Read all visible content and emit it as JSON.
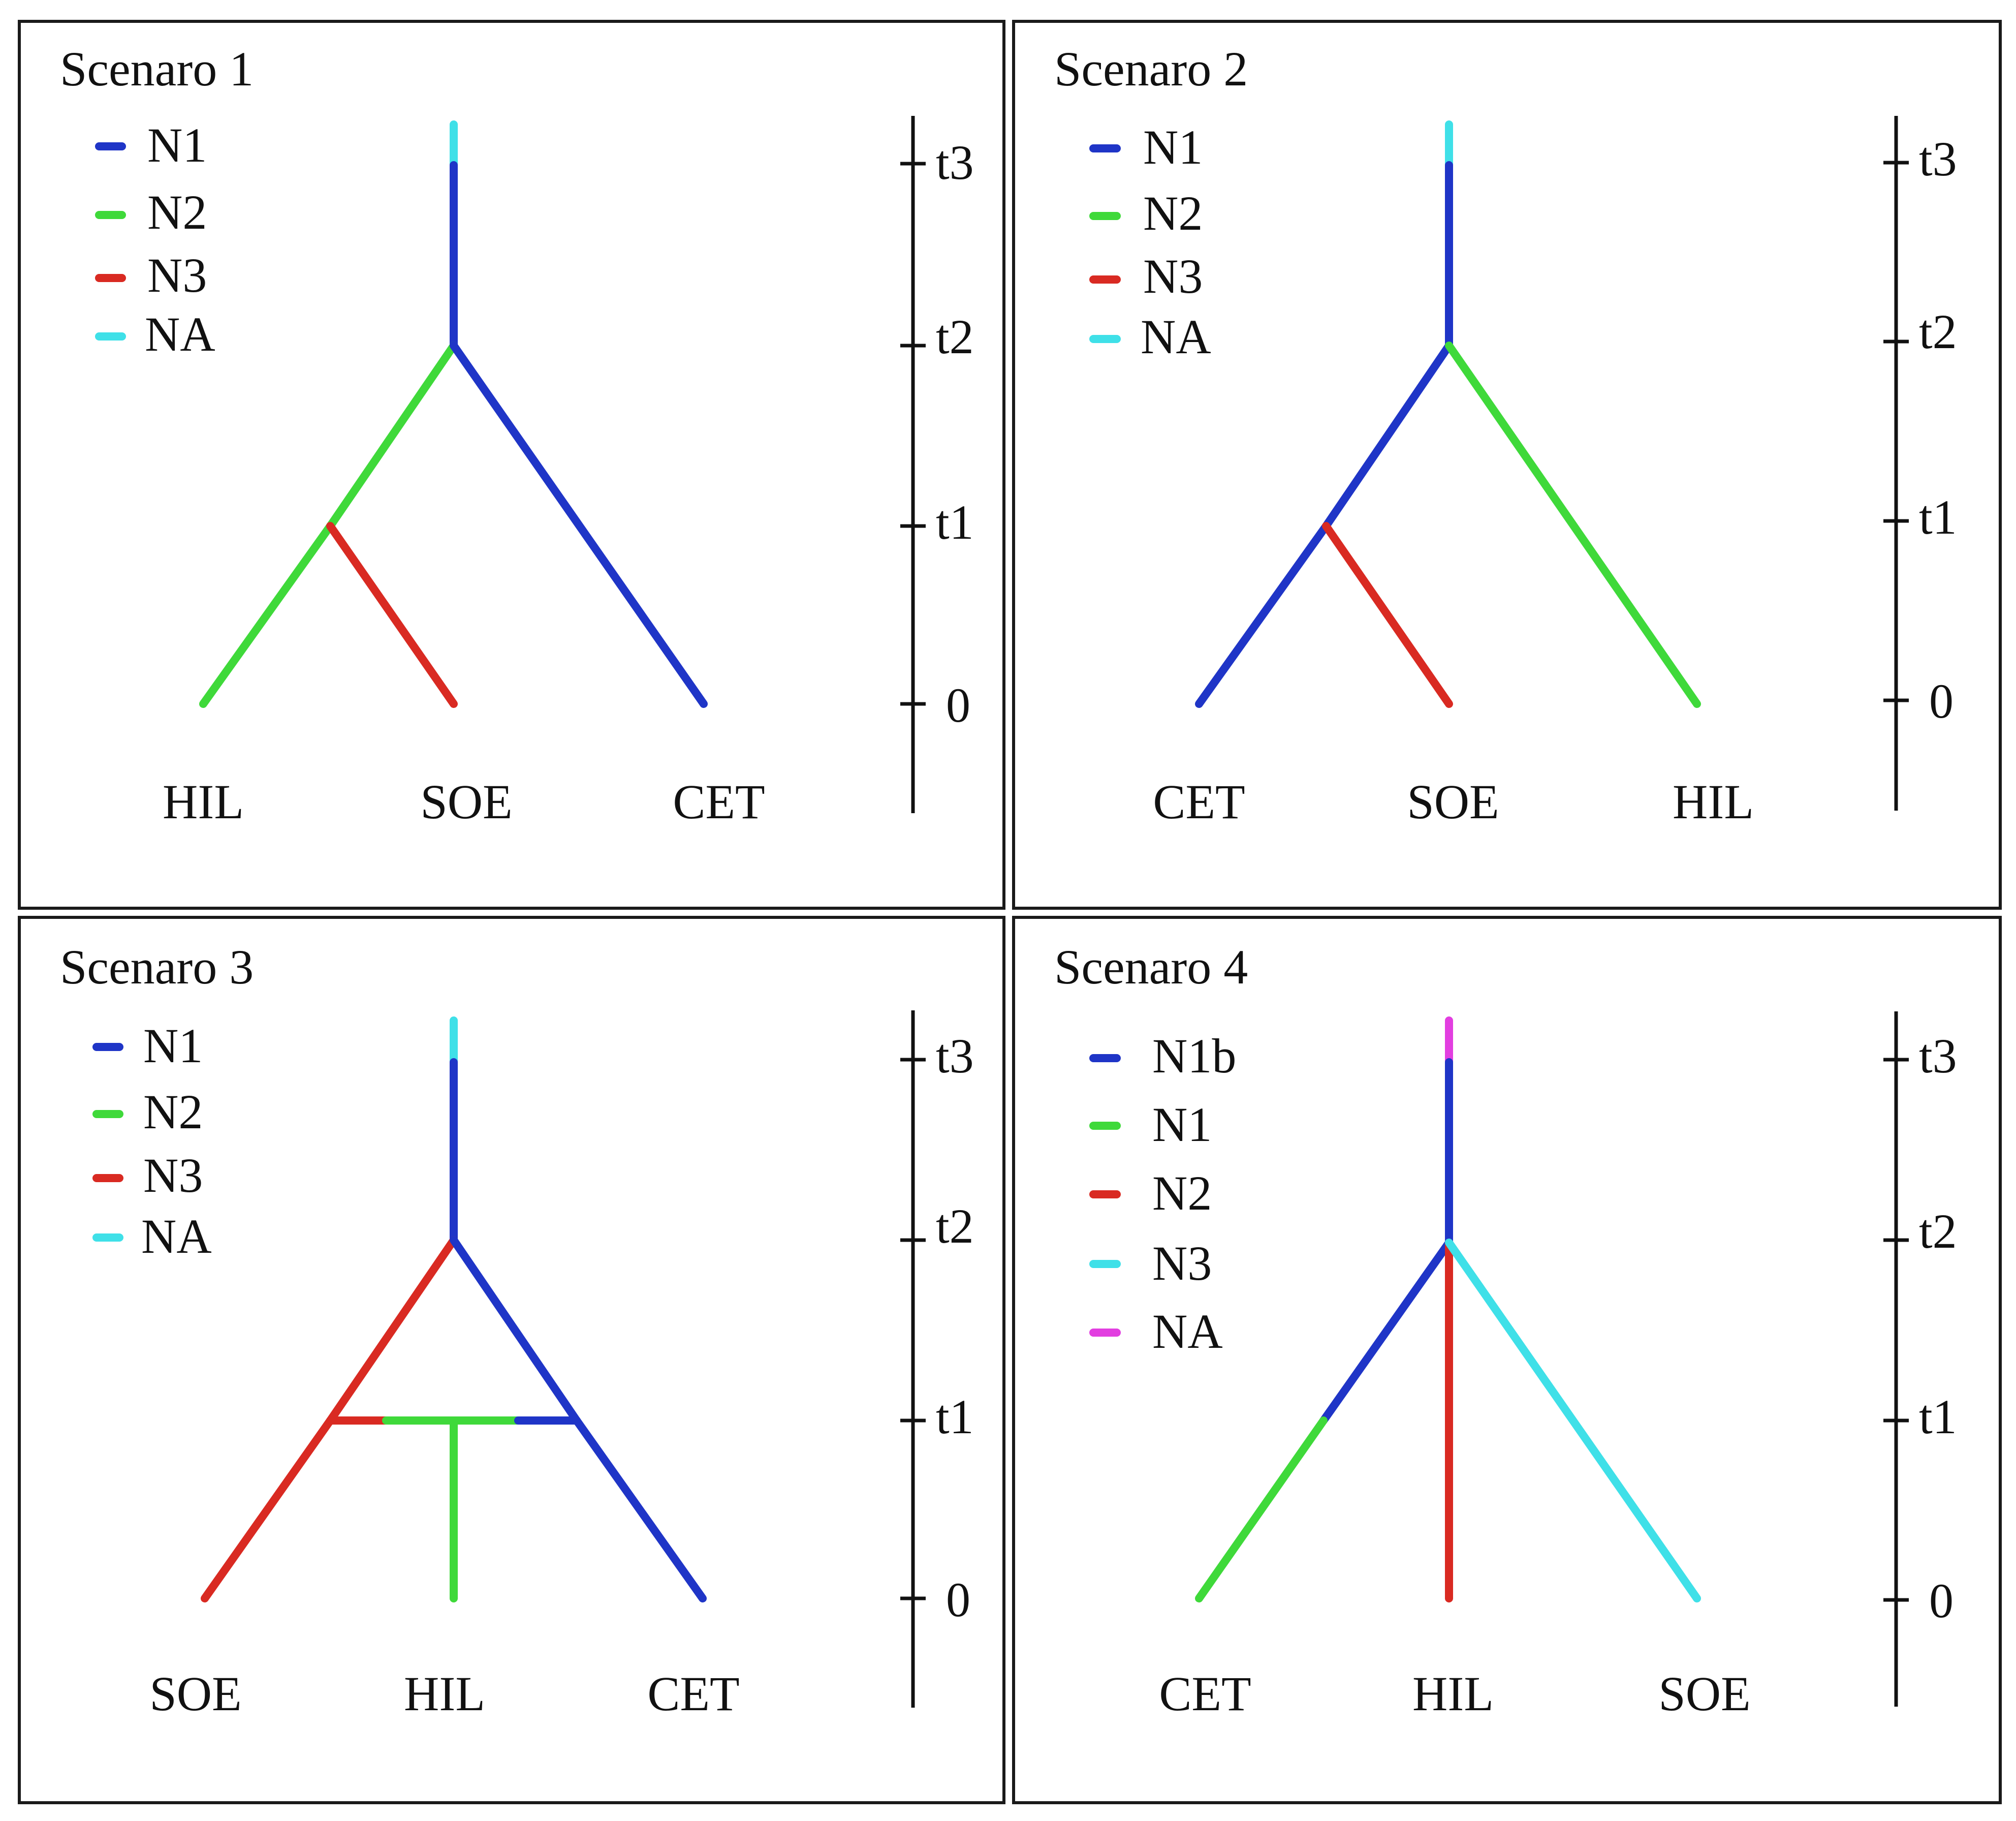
{
  "colors": {
    "blue": "#1f35c7",
    "green": "#3fd93a",
    "red": "#d92a22",
    "cyan": "#3fe0e8",
    "magenta": "#e23ee0"
  },
  "time_labels": [
    "t3",
    "t2",
    "t1",
    "0"
  ],
  "panels": [
    {
      "title": "Scenaro 1",
      "legend": [
        {
          "label": "N1",
          "color": "blue"
        },
        {
          "label": "N2",
          "color": "green"
        },
        {
          "label": "N3",
          "color": "red"
        },
        {
          "label": "NA",
          "color": "cyan"
        }
      ],
      "leaves": [
        "HIL",
        "SOE",
        "CET"
      ]
    },
    {
      "title": "Scenaro 2",
      "legend": [
        {
          "label": "N1",
          "color": "blue"
        },
        {
          "label": "N2",
          "color": "green"
        },
        {
          "label": "N3",
          "color": "red"
        },
        {
          "label": "NA",
          "color": "cyan"
        }
      ],
      "leaves": [
        "CET",
        "SOE",
        "HIL"
      ]
    },
    {
      "title": "Scenaro 3",
      "legend": [
        {
          "label": "N1",
          "color": "blue"
        },
        {
          "label": "N2",
          "color": "green"
        },
        {
          "label": "N3",
          "color": "red"
        },
        {
          "label": "NA",
          "color": "cyan"
        }
      ],
      "leaves": [
        "SOE",
        "HIL",
        "CET"
      ]
    },
    {
      "title": "Scenaro 4",
      "legend": [
        {
          "label": "N1b",
          "color": "blue"
        },
        {
          "label": "N1",
          "color": "green"
        },
        {
          "label": "N2",
          "color": "red"
        },
        {
          "label": "N3",
          "color": "cyan"
        },
        {
          "label": "NA",
          "color": "magenta"
        }
      ],
      "leaves": [
        "CET",
        "HIL",
        "SOE"
      ]
    }
  ]
}
